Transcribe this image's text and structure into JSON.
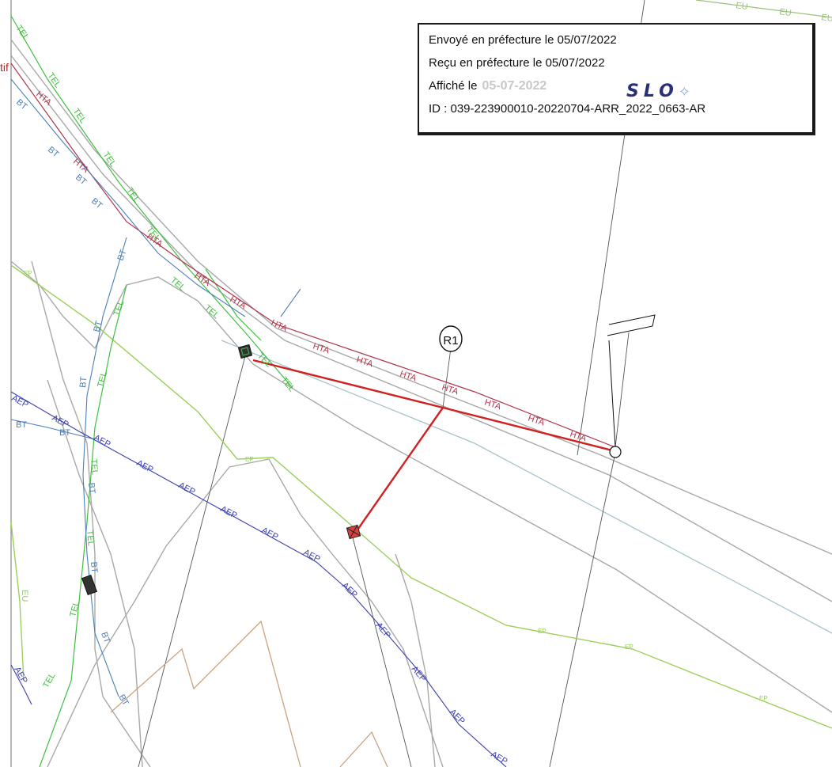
{
  "stamp": {
    "sent": "Envoyé en préfecture le 05/07/2022",
    "received": "Reçu en préfecture le 05/07/2022",
    "posted_prefix": "Affiché le",
    "posted_date": "05-07-2022",
    "id": "ID : 039-223900010-20220704-ARR_2022_0663-AR",
    "logo_text": "SLO"
  },
  "map": {
    "marker_label": "R1",
    "edge_label": "tif",
    "network_labels": {
      "hta": "HTA",
      "tel": "TEL",
      "bt": "BT",
      "aep": "AEP",
      "ep": "EP",
      "eu": "EU"
    },
    "colors": {
      "hta": "#b0344a",
      "tel": "#3fbf3f",
      "bt": "#4a7fb8",
      "aep": "#3b3fb0",
      "ep": "#9ccf5a",
      "eu": "#9ac27a",
      "route": "#d02020",
      "parcel": "#a0a0a0",
      "boundary": "#c9a27e"
    }
  }
}
